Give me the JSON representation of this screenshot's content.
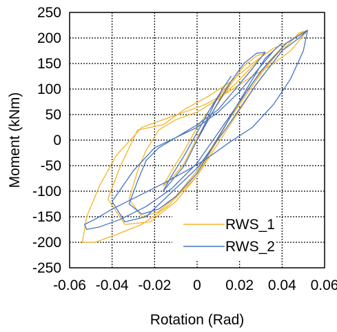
{
  "chart_data": {
    "type": "line",
    "title": "",
    "xlabel": "Rotation (Rad)",
    "ylabel": "Moment (kNm)",
    "xlim": [
      -0.06,
      0.06
    ],
    "ylim": [
      -250,
      250
    ],
    "xticks": [
      -0.06,
      -0.04,
      -0.02,
      0,
      0.02,
      0.04,
      0.06
    ],
    "yticks": [
      250,
      200,
      150,
      100,
      50,
      0,
      -50,
      -100,
      -150,
      -200,
      -250
    ],
    "xtick_labels": [
      "-0.06",
      "-0.04",
      "-0.02",
      "0",
      "0.02",
      "0.04",
      "0.06"
    ],
    "ytick_labels": [
      "250",
      "200",
      "150",
      "100",
      "50",
      "0",
      "-50",
      "-100",
      "-150",
      "-200",
      "-250"
    ],
    "grid": true,
    "grid_style": "dotted",
    "legend_position": "bottom-right",
    "series": [
      {
        "name": "RWS_1",
        "color": "#F5B324",
        "x": [
          0,
          0.004,
          0.008,
          0.012,
          0.016,
          0.012,
          0.006,
          0,
          -0.006,
          -0.012,
          -0.016,
          -0.012,
          -0.006,
          0,
          0.008,
          0.016,
          0.022,
          0.028,
          0.032,
          0.026,
          0.018,
          0.01,
          0,
          -0.01,
          -0.018,
          -0.024,
          -0.028,
          -0.032,
          -0.026,
          -0.018,
          -0.01,
          0,
          0.012,
          0.024,
          0.034,
          0.042,
          0.036,
          0.026,
          0.016,
          0.005,
          -0.006,
          -0.016,
          -0.028,
          -0.036,
          -0.042,
          -0.034,
          -0.022,
          -0.01,
          0,
          0.014,
          0.028,
          0.04,
          0.048,
          0.052,
          0.05,
          0.044,
          0.036,
          0.026,
          0.015,
          0.004,
          -0.006,
          -0.016,
          -0.026,
          -0.038,
          -0.046,
          -0.052,
          -0.054,
          -0.048,
          -0.038,
          -0.026,
          -0.014,
          0,
          0.015,
          0.03,
          0.042,
          0.05,
          0.052
        ],
        "y": [
          0,
          30,
          60,
          90,
          115,
          95,
          60,
          25,
          -20,
          -60,
          -90,
          -75,
          -45,
          5,
          60,
          110,
          145,
          165,
          170,
          145,
          110,
          80,
          55,
          40,
          20,
          -20,
          -60,
          -115,
          -150,
          -140,
          -110,
          -60,
          20,
          100,
          155,
          190,
          180,
          150,
          115,
          85,
          60,
          30,
          20,
          -50,
          -115,
          -165,
          -160,
          -120,
          -70,
          20,
          110,
          175,
          210,
          215,
          205,
          175,
          150,
          125,
          95,
          70,
          55,
          40,
          25,
          -30,
          -90,
          -150,
          -200,
          -200,
          -185,
          -165,
          -130,
          -70,
          40,
          130,
          190,
          212,
          215
        ]
      },
      {
        "name": "RWS_2",
        "color": "#4472C4",
        "x": [
          0,
          0.004,
          0.008,
          0.012,
          0.016,
          0.012,
          0.006,
          0,
          -0.006,
          -0.012,
          -0.016,
          -0.012,
          -0.006,
          0,
          0.008,
          0.016,
          0.022,
          0.028,
          0.032,
          0.026,
          0.018,
          0.01,
          0,
          -0.01,
          -0.018,
          -0.024,
          -0.028,
          -0.032,
          -0.026,
          -0.018,
          -0.01,
          0,
          0.012,
          0.024,
          0.032,
          0.04,
          0.036,
          0.028,
          0.02,
          0.01,
          0,
          -0.01,
          -0.02,
          -0.03,
          -0.04,
          -0.034,
          -0.024,
          -0.014,
          0,
          0.014,
          0.028,
          0.04,
          0.048,
          0.052,
          0.05,
          0.044,
          0.036,
          0.026,
          0.015,
          0.005,
          -0.005,
          -0.016,
          -0.028,
          -0.04,
          -0.048,
          -0.053,
          -0.052,
          -0.046,
          -0.036,
          -0.024,
          -0.012,
          0,
          0.015,
          0.03,
          0.042,
          0.05,
          0.052
        ],
        "y": [
          0,
          35,
          70,
          100,
          125,
          100,
          60,
          15,
          -30,
          -70,
          -100,
          -80,
          -50,
          0,
          60,
          115,
          150,
          170,
          172,
          140,
          100,
          60,
          30,
          5,
          -15,
          -40,
          -80,
          -125,
          -145,
          -135,
          -110,
          -65,
          20,
          105,
          160,
          190,
          175,
          135,
          95,
          55,
          25,
          5,
          -15,
          -60,
          -120,
          -160,
          -150,
          -110,
          -55,
          25,
          110,
          175,
          200,
          215,
          175,
          120,
          70,
          25,
          -5,
          -35,
          -60,
          -85,
          -110,
          -135,
          -155,
          -165,
          -175,
          -170,
          -155,
          -130,
          -95,
          -45,
          45,
          135,
          190,
          210,
          215
        ]
      }
    ]
  }
}
